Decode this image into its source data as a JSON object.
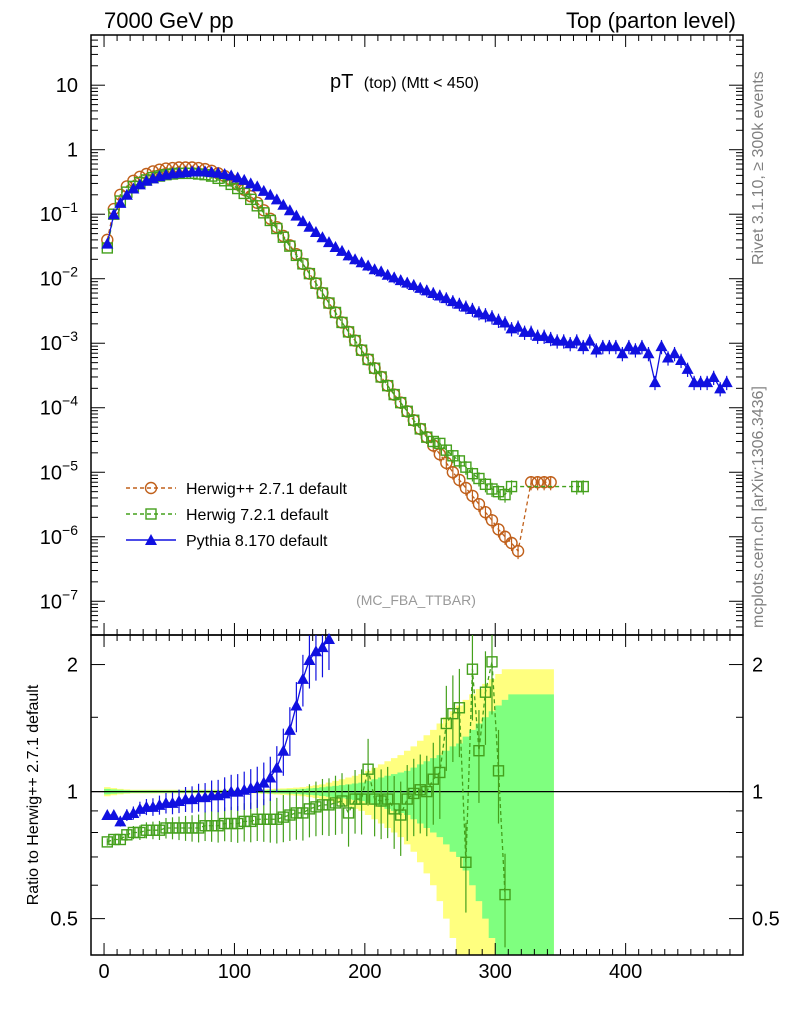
{
  "header": {
    "left": "7000 GeV pp",
    "right": "Top (parton level)"
  },
  "side_labels": {
    "rivet": "Rivet 3.1.10, ≥ 300k events",
    "mcplots": "mcplots.cern.ch [arXiv:1306.3436]"
  },
  "colors": {
    "herwigpp": "#c0601b",
    "herwig7": "#44a01c",
    "pythia": "#1010e0",
    "band_yellow": "#ffff7f",
    "band_green": "#7fff7f"
  },
  "chart_data": [
    {
      "type": "line",
      "title": "pT (top) (Mtt < 450)",
      "title_main": "pT",
      "title_sub": "(top) (Mtt < 450)",
      "xlabel": "",
      "ylabel": "",
      "yscale": "log",
      "xlim": [
        -10,
        490
      ],
      "ylim": [
        3e-08,
        60
      ],
      "y_ticks": [
        {
          "v": 10,
          "label": "10"
        },
        {
          "v": 1,
          "label": "1"
        },
        {
          "v": 0.1,
          "label": "10",
          "exp": "−1"
        },
        {
          "v": 0.01,
          "label": "10",
          "exp": "−2"
        },
        {
          "v": 0.001,
          "label": "10",
          "exp": "−3"
        },
        {
          "v": 0.0001,
          "label": "10",
          "exp": "−4"
        },
        {
          "v": 1e-05,
          "label": "10",
          "exp": "−5"
        },
        {
          "v": 1e-06,
          "label": "10",
          "exp": "−6"
        },
        {
          "v": 1e-07,
          "label": "10",
          "exp": "−7"
        }
      ],
      "annotation": "(MC_FBA_TTBAR)",
      "legend_position": "bottom-left",
      "series": [
        {
          "name": "Herwig++ 2.7.1 default",
          "marker": "circle",
          "style": "dashed",
          "x": [
            2.5,
            7.5,
            12.5,
            17.5,
            22.5,
            27.5,
            32.5,
            37.5,
            42.5,
            47.5,
            52.5,
            57.5,
            62.5,
            67.5,
            72.5,
            77.5,
            82.5,
            87.5,
            92.5,
            97.5,
            102.5,
            107.5,
            112.5,
            117.5,
            122.5,
            127.5,
            132.5,
            137.5,
            142.5,
            147.5,
            152.5,
            157.5,
            162.5,
            167.5,
            172.5,
            177.5,
            182.5,
            187.5,
            192.5,
            197.5,
            202.5,
            207.5,
            212.5,
            217.5,
            222.5,
            227.5,
            232.5,
            237.5,
            242.5,
            247.5,
            252.5,
            257.5,
            262.5,
            267.5,
            272.5,
            277.5,
            282.5,
            287.5,
            292.5,
            297.5,
            302.5,
            307.5,
            312.5,
            317.5,
            327.5,
            332.5,
            337.5,
            342.5
          ],
          "y": [
            0.04,
            0.12,
            0.2,
            0.27,
            0.33,
            0.38,
            0.42,
            0.46,
            0.49,
            0.51,
            0.52,
            0.53,
            0.53,
            0.53,
            0.52,
            0.5,
            0.47,
            0.43,
            0.39,
            0.34,
            0.29,
            0.24,
            0.19,
            0.15,
            0.115,
            0.085,
            0.063,
            0.046,
            0.033,
            0.024,
            0.017,
            0.012,
            0.0085,
            0.006,
            0.0042,
            0.003,
            0.0021,
            0.0015,
            0.0011,
            0.00078,
            0.00056,
            0.00041,
            0.0003,
            0.00022,
            0.00016,
            0.00012,
            8.8e-05,
            6.4e-05,
            4.7e-05,
            3.5e-05,
            2.6e-05,
            1.9e-05,
            1.4e-05,
            1e-05,
            7.6e-06,
            5.7e-06,
            4.3e-06,
            3.2e-06,
            2.4e-06,
            1.8e-06,
            1.3e-06,
            1e-06,
            8e-07,
            6e-07,
            7e-06,
            7e-06,
            7e-06,
            7e-06
          ]
        },
        {
          "name": "Herwig 7.2.1 default",
          "marker": "square",
          "style": "dashed",
          "x": [
            2.5,
            7.5,
            12.5,
            17.5,
            22.5,
            27.5,
            32.5,
            37.5,
            42.5,
            47.5,
            52.5,
            57.5,
            62.5,
            67.5,
            72.5,
            77.5,
            82.5,
            87.5,
            92.5,
            97.5,
            102.5,
            107.5,
            112.5,
            117.5,
            122.5,
            127.5,
            132.5,
            137.5,
            142.5,
            147.5,
            152.5,
            157.5,
            162.5,
            167.5,
            172.5,
            177.5,
            182.5,
            187.5,
            192.5,
            197.5,
            202.5,
            207.5,
            212.5,
            217.5,
            222.5,
            227.5,
            232.5,
            237.5,
            242.5,
            247.5,
            252.5,
            257.5,
            262.5,
            267.5,
            272.5,
            277.5,
            282.5,
            287.5,
            292.5,
            297.5,
            302.5,
            307.5,
            312.5,
            362.5,
            367.5
          ],
          "y": [
            0.03,
            0.1,
            0.16,
            0.22,
            0.27,
            0.31,
            0.34,
            0.37,
            0.39,
            0.41,
            0.42,
            0.43,
            0.43,
            0.43,
            0.42,
            0.41,
            0.39,
            0.36,
            0.33,
            0.29,
            0.25,
            0.21,
            0.17,
            0.135,
            0.105,
            0.08,
            0.06,
            0.044,
            0.032,
            0.023,
            0.017,
            0.012,
            0.0085,
            0.006,
            0.0042,
            0.003,
            0.0021,
            0.0015,
            0.0011,
            0.00078,
            0.00056,
            0.00041,
            0.0003,
            0.00022,
            0.00016,
            0.00012,
            8.8e-05,
            6.4e-05,
            4.7e-05,
            3.5e-05,
            3e-05,
            2.8e-05,
            2.2e-05,
            1.8e-05,
            1.5e-05,
            1.2e-05,
            9.5e-06,
            8e-06,
            6.5e-06,
            5.5e-06,
            5e-06,
            4.5e-06,
            6e-06,
            6e-06,
            6e-06
          ]
        },
        {
          "name": "Pythia 8.170 default",
          "marker": "triangle",
          "style": "solid",
          "x": [
            2.5,
            7.5,
            12.5,
            17.5,
            22.5,
            27.5,
            32.5,
            37.5,
            42.5,
            47.5,
            52.5,
            57.5,
            62.5,
            67.5,
            72.5,
            77.5,
            82.5,
            87.5,
            92.5,
            97.5,
            102.5,
            107.5,
            112.5,
            117.5,
            122.5,
            127.5,
            132.5,
            137.5,
            142.5,
            147.5,
            152.5,
            157.5,
            162.5,
            167.5,
            172.5,
            177.5,
            182.5,
            187.5,
            192.5,
            197.5,
            202.5,
            207.5,
            212.5,
            217.5,
            222.5,
            227.5,
            232.5,
            237.5,
            242.5,
            247.5,
            252.5,
            257.5,
            262.5,
            267.5,
            272.5,
            277.5,
            282.5,
            287.5,
            292.5,
            297.5,
            302.5,
            307.5,
            312.5,
            317.5,
            322.5,
            327.5,
            332.5,
            337.5,
            342.5,
            347.5,
            352.5,
            357.5,
            362.5,
            367.5,
            372.5,
            377.5,
            382.5,
            387.5,
            392.5,
            397.5,
            402.5,
            407.5,
            412.5,
            417.5,
            422.5,
            427.5,
            432.5,
            437.5,
            442.5,
            447.5,
            452.5,
            457.5,
            462.5,
            467.5,
            472.5,
            477.5
          ],
          "y": [
            0.035,
            0.1,
            0.15,
            0.2,
            0.25,
            0.29,
            0.33,
            0.36,
            0.39,
            0.41,
            0.43,
            0.44,
            0.45,
            0.46,
            0.46,
            0.46,
            0.45,
            0.44,
            0.42,
            0.4,
            0.37,
            0.34,
            0.3,
            0.27,
            0.23,
            0.2,
            0.17,
            0.14,
            0.115,
            0.095,
            0.078,
            0.064,
            0.053,
            0.044,
            0.037,
            0.031,
            0.027,
            0.023,
            0.02,
            0.018,
            0.016,
            0.014,
            0.013,
            0.0115,
            0.0105,
            0.0095,
            0.0087,
            0.008,
            0.0072,
            0.0066,
            0.006,
            0.0055,
            0.005,
            0.0045,
            0.0041,
            0.0037,
            0.0034,
            0.003,
            0.0028,
            0.0026,
            0.0023,
            0.0021,
            0.0017,
            0.0018,
            0.0015,
            0.0015,
            0.0013,
            0.0013,
            0.0012,
            0.0011,
            0.0011,
            0.001,
            0.0011,
            0.0009,
            0.0011,
            0.0008,
            0.0009,
            0.0009,
            0.0009,
            0.0007,
            0.0009,
            0.0008,
            0.0009,
            0.0007,
            0.00025,
            0.0009,
            0.0006,
            0.0007,
            0.00055,
            0.0004,
            0.00025,
            0.00025,
            0.00025,
            0.0003,
            0.0002,
            0.00025
          ]
        }
      ]
    },
    {
      "type": "line",
      "title": "",
      "xlabel": "",
      "ylabel": "Ratio to Herwig++ 2.7.1 default",
      "yscale": "log",
      "xlim": [
        -10,
        490
      ],
      "ylim": [
        0.41,
        2.35
      ],
      "x_ticks": [
        0,
        100,
        200,
        300,
        400
      ],
      "y_ticks": [
        {
          "v": 2,
          "label": "2"
        },
        {
          "v": 1,
          "label": "1"
        },
        {
          "v": 0.5,
          "label": "0.5"
        }
      ],
      "reference": 1,
      "bands": {
        "x": [
          2.5,
          7.5,
          12.5,
          17.5,
          22.5,
          27.5,
          32.5,
          37.5,
          42.5,
          47.5,
          52.5,
          57.5,
          62.5,
          67.5,
          72.5,
          77.5,
          82.5,
          87.5,
          92.5,
          97.5,
          102.5,
          107.5,
          112.5,
          117.5,
          122.5,
          127.5,
          132.5,
          137.5,
          142.5,
          147.5,
          152.5,
          157.5,
          162.5,
          167.5,
          172.5,
          177.5,
          182.5,
          187.5,
          192.5,
          197.5,
          202.5,
          207.5,
          212.5,
          217.5,
          222.5,
          227.5,
          232.5,
          237.5,
          242.5,
          247.5,
          252.5,
          257.5,
          262.5,
          267.5,
          272.5,
          277.5,
          282.5,
          287.5,
          292.5,
          297.5,
          302.5,
          307.5,
          312.5,
          317.5,
          327.5,
          332.5,
          337.5,
          342.5
        ],
        "yellow": [
          0.025,
          0.02,
          0.015,
          0.012,
          0.01,
          0.01,
          0.01,
          0.01,
          0.01,
          0.01,
          0.01,
          0.01,
          0.01,
          0.01,
          0.01,
          0.01,
          0.01,
          0.01,
          0.01,
          0.01,
          0.01,
          0.01,
          0.01,
          0.01,
          0.012,
          0.014,
          0.016,
          0.018,
          0.02,
          0.022,
          0.025,
          0.03,
          0.035,
          0.04,
          0.05,
          0.06,
          0.07,
          0.08,
          0.09,
          0.1,
          0.12,
          0.14,
          0.16,
          0.18,
          0.2,
          0.22,
          0.25,
          0.28,
          0.32,
          0.36,
          0.4,
          0.45,
          0.5,
          0.55,
          0.6,
          0.65,
          0.7,
          0.75,
          0.8,
          0.85,
          0.9,
          0.95,
          0.95,
          0.95,
          0.95,
          0.95,
          0.95,
          0.95
        ],
        "green": [
          0.015,
          0.012,
          0.01,
          0.008,
          0.007,
          0.007,
          0.007,
          0.007,
          0.007,
          0.007,
          0.007,
          0.007,
          0.007,
          0.007,
          0.007,
          0.007,
          0.007,
          0.007,
          0.007,
          0.007,
          0.007,
          0.007,
          0.007,
          0.007,
          0.008,
          0.009,
          0.01,
          0.011,
          0.012,
          0.013,
          0.015,
          0.018,
          0.02,
          0.024,
          0.028,
          0.032,
          0.036,
          0.04,
          0.045,
          0.05,
          0.06,
          0.07,
          0.08,
          0.09,
          0.1,
          0.11,
          0.12,
          0.14,
          0.16,
          0.18,
          0.2,
          0.22,
          0.25,
          0.28,
          0.3,
          0.35,
          0.4,
          0.45,
          0.5,
          0.55,
          0.6,
          0.65,
          0.7,
          0.7,
          0.7,
          0.7,
          0.7,
          0.7
        ]
      },
      "series": [
        {
          "name": "Herwig 7.2.1 default",
          "marker": "square",
          "style": "dashed",
          "x": [
            2.5,
            7.5,
            12.5,
            17.5,
            22.5,
            27.5,
            32.5,
            37.5,
            42.5,
            47.5,
            52.5,
            57.5,
            62.5,
            67.5,
            72.5,
            77.5,
            82.5,
            87.5,
            92.5,
            97.5,
            102.5,
            107.5,
            112.5,
            117.5,
            122.5,
            127.5,
            132.5,
            137.5,
            142.5,
            147.5,
            152.5,
            157.5,
            162.5,
            167.5,
            172.5,
            177.5,
            182.5,
            187.5,
            192.5,
            197.5,
            202.5,
            207.5,
            212.5,
            217.5,
            222.5,
            227.5,
            232.5,
            237.5,
            242.5,
            247.5,
            252.5,
            257.5,
            262.5,
            267.5,
            272.5,
            277.5,
            282.5,
            287.5,
            292.5,
            297.5,
            302.5,
            307.5
          ],
          "y": [
            0.76,
            0.77,
            0.77,
            0.79,
            0.8,
            0.8,
            0.81,
            0.81,
            0.81,
            0.82,
            0.82,
            0.82,
            0.82,
            0.82,
            0.82,
            0.83,
            0.83,
            0.83,
            0.84,
            0.84,
            0.84,
            0.85,
            0.85,
            0.86,
            0.86,
            0.86,
            0.86,
            0.87,
            0.88,
            0.89,
            0.89,
            0.91,
            0.92,
            0.93,
            0.93,
            0.94,
            0.95,
            0.89,
            0.96,
            0.96,
            1.13,
            0.96,
            0.95,
            0.96,
            0.91,
            0.88,
            0.96,
            0.99,
            1.01,
            1.0,
            1.07,
            1.11,
            1.45,
            1.53,
            1.58,
            0.68,
            1.95,
            1.25,
            1.72,
            2.03,
            1.12,
            0.57
          ]
        },
        {
          "name": "Pythia 8.170 default",
          "marker": "triangle",
          "style": "solid",
          "x": [
            2.5,
            7.5,
            12.5,
            17.5,
            22.5,
            27.5,
            32.5,
            37.5,
            42.5,
            47.5,
            52.5,
            57.5,
            62.5,
            67.5,
            72.5,
            77.5,
            82.5,
            87.5,
            92.5,
            97.5,
            102.5,
            107.5,
            112.5,
            117.5,
            122.5,
            127.5,
            132.5,
            137.5,
            142.5,
            147.5,
            152.5,
            157.5,
            162.5,
            167.5,
            172.5
          ],
          "y": [
            0.88,
            0.88,
            0.85,
            0.88,
            0.89,
            0.91,
            0.92,
            0.92,
            0.93,
            0.94,
            0.94,
            0.95,
            0.96,
            0.96,
            0.97,
            0.97,
            0.98,
            0.98,
            0.99,
            1.0,
            1.0,
            1.01,
            1.02,
            1.03,
            1.05,
            1.08,
            1.14,
            1.25,
            1.4,
            1.6,
            1.85,
            2.05,
            2.15,
            2.2,
            2.3
          ]
        }
      ]
    }
  ]
}
